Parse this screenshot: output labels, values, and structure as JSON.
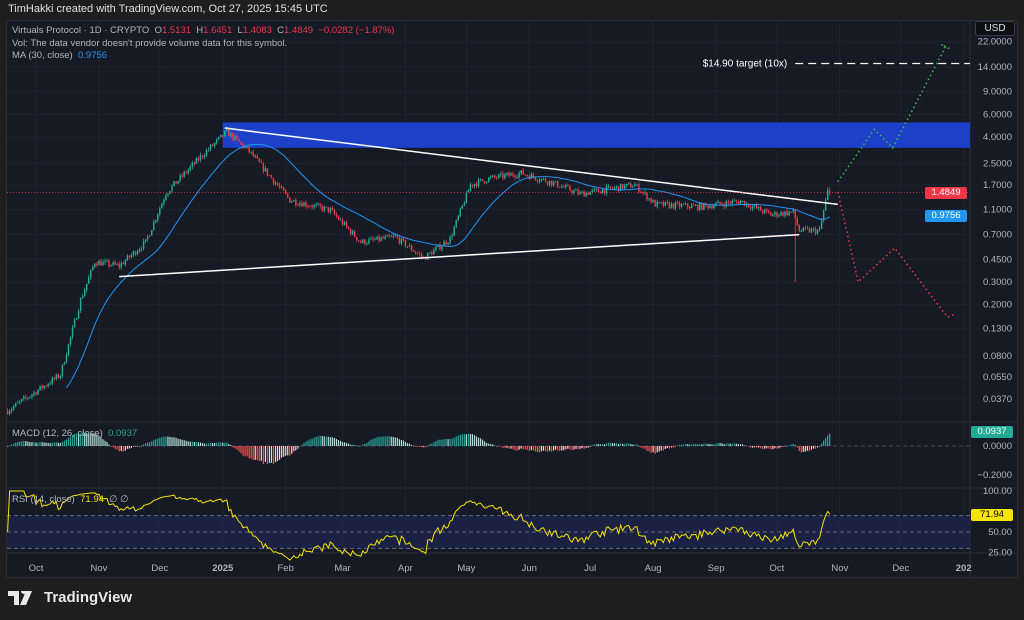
{
  "header": {
    "credit": "TimHakki created with TradingView.com, Oct 27, 2025 15:45 UTC"
  },
  "legend": {
    "symbol": "Virtuals Protocol · 1D · CRYPTO",
    "o_label": "O",
    "o": "1.5131",
    "h_label": "H",
    "h": "1.6451",
    "l_label": "L",
    "l": "1.4083",
    "c_label": "C",
    "c": "1.4849",
    "change": "−0.0282 (−1.87%)",
    "vol": "Vol: The data vendor doesn't provide volume data for this symbol.",
    "ma_label": "MA (30, close)",
    "ma_value": "0.9756",
    "macd_label": "MACD (12, 26, close)",
    "macd_value": "0.0937",
    "rsi_label": "RSI (14, close)",
    "rsi_value": "71.94",
    "rsi_extra": "∅ ∅"
  },
  "currency_button": "USD",
  "price_tags": {
    "last": "1.4849",
    "ma": "0.9756",
    "macd": "0.0937",
    "rsi": "71.94"
  },
  "footer": {
    "brand": "TradingView"
  },
  "colors": {
    "up": "#22ab94",
    "down": "#f23645",
    "ma": "#2196f3",
    "rsi": "#f5e400",
    "zone": "#1e40c8",
    "bg": "#161a25"
  },
  "chart_data": {
    "type": "candlestick",
    "scale": "log",
    "price_axis_ticks": [
      "22.0000",
      "14.0000",
      "9.0000",
      "6.0000",
      "4.0000",
      "2.5000",
      "1.7000",
      "1.1000",
      "0.7000",
      "0.4500",
      "0.3000",
      "0.2000",
      "0.1300",
      "0.0800",
      "0.0550",
      "0.0370"
    ],
    "macd_axis_ticks": [
      "0.0000",
      "−0.2000"
    ],
    "rsi_axis_ticks": [
      "100.00",
      "50.00",
      "25.00"
    ],
    "time_axis_ticks": [
      {
        "label": "Oct",
        "date": "2024-10-01"
      },
      {
        "label": "Nov",
        "date": "2024-11-01"
      },
      {
        "label": "Dec",
        "date": "2024-12-01"
      },
      {
        "label": "2025",
        "date": "2025-01-01",
        "bold": true
      },
      {
        "label": "Feb",
        "date": "2025-02-01"
      },
      {
        "label": "Mar",
        "date": "2025-03-01"
      },
      {
        "label": "Apr",
        "date": "2025-04-01"
      },
      {
        "label": "May",
        "date": "2025-05-01"
      },
      {
        "label": "Jun",
        "date": "2025-06-01"
      },
      {
        "label": "Jul",
        "date": "2025-07-01"
      },
      {
        "label": "Aug",
        "date": "2025-08-01"
      },
      {
        "label": "Sep",
        "date": "2025-09-01"
      },
      {
        "label": "Oct",
        "date": "2025-10-01"
      },
      {
        "label": "Nov",
        "date": "2025-11-01"
      },
      {
        "label": "Dec",
        "date": "2025-12-01"
      },
      {
        "label": "202",
        "date": "2026-01-01",
        "bold": true
      }
    ],
    "approx_close_path": [
      [
        "2024-09-17",
        0.03
      ],
      [
        "2024-10-13",
        0.057
      ],
      [
        "2024-10-23",
        0.217
      ],
      [
        "2024-10-30",
        0.43
      ],
      [
        "2024-11-11",
        0.4
      ],
      [
        "2024-11-24",
        0.61
      ],
      [
        "2024-12-04",
        1.47
      ],
      [
        "2024-12-21",
        2.8
      ],
      [
        "2025-01-03",
        4.4
      ],
      [
        "2025-01-14",
        3.1
      ],
      [
        "2025-02-03",
        1.3
      ],
      [
        "2025-02-23",
        1.08
      ],
      [
        "2025-03-10",
        0.61
      ],
      [
        "2025-03-27",
        0.67
      ],
      [
        "2025-04-10",
        0.46
      ],
      [
        "2025-04-23",
        0.65
      ],
      [
        "2025-05-03",
        1.7
      ],
      [
        "2025-05-12",
        1.9
      ],
      [
        "2025-05-28",
        2.1
      ],
      [
        "2025-06-11",
        1.8
      ],
      [
        "2025-06-26",
        1.45
      ],
      [
        "2025-07-23",
        1.7
      ],
      [
        "2025-08-02",
        1.2
      ],
      [
        "2025-08-24",
        1.15
      ],
      [
        "2025-09-13",
        1.27
      ],
      [
        "2025-09-28",
        1.0
      ],
      [
        "2025-10-09",
        1.05
      ],
      [
        "2025-10-12",
        0.75
      ],
      [
        "2025-10-22",
        0.75
      ],
      [
        "2025-10-26",
        1.5131
      ]
    ],
    "crash_wick": {
      "date": "2025-10-10",
      "low": 0.3
    },
    "last_candle": {
      "date": "2025-10-27",
      "open": 1.5131,
      "high": 1.6451,
      "low": 1.4083,
      "close": 1.4849
    },
    "ma_period": 30,
    "last_price": 1.4849,
    "upper_trendline": [
      [
        "2025-01-02",
        4.7
      ],
      [
        "2025-10-31",
        1.2
      ]
    ],
    "lower_trendline": [
      [
        "2024-11-11",
        0.33
      ],
      [
        "2025-10-12",
        0.7
      ]
    ],
    "resistance_zone": {
      "from": "2025-01-01",
      "low": 3.3,
      "high": 5.2
    },
    "target": {
      "price": 14.9,
      "from": "2025-10-10",
      "label": "$14.90 target (10x)"
    },
    "bull_projection": [
      [
        "2025-10-31",
        1.8
      ],
      [
        "2025-11-18",
        4.6
      ],
      [
        "2025-11-27",
        3.3
      ],
      [
        "2025-12-23",
        20
      ],
      [
        "2025-12-21",
        21
      ],
      [
        "2025-12-26",
        19
      ]
    ],
    "bear_projection": [
      [
        "2025-10-31",
        1.5
      ],
      [
        "2025-11-10",
        0.3
      ],
      [
        "2025-11-28",
        0.55
      ],
      [
        "2025-12-24",
        0.16
      ],
      [
        "2025-12-28",
        0.17
      ]
    ],
    "rsi_bands": [
      70,
      50,
      30
    ]
  }
}
